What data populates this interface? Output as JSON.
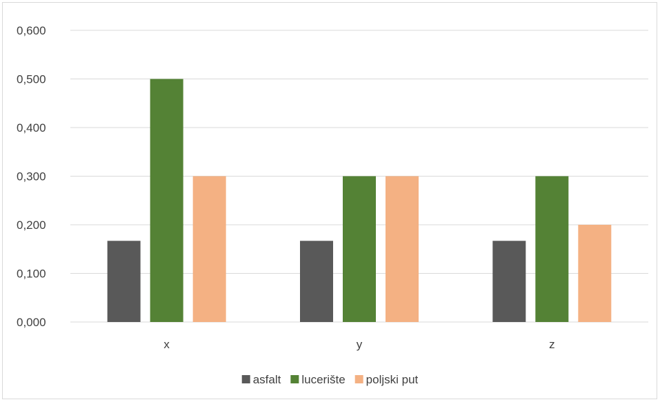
{
  "chart_data": {
    "type": "bar",
    "title": "",
    "xlabel": "",
    "ylabel": "",
    "categories": [
      "x",
      "y",
      "z"
    ],
    "series": [
      {
        "name": "asfalt",
        "color": "#595959",
        "values": [
          0.167,
          0.167,
          0.167
        ]
      },
      {
        "name": "lucerište",
        "color": "#548235",
        "values": [
          0.5,
          0.3,
          0.3
        ]
      },
      {
        "name": "poljski put",
        "color": "#f4b183",
        "values": [
          0.3,
          0.3,
          0.2
        ]
      }
    ],
    "ylim": [
      0,
      0.6
    ],
    "yticks": [
      "0,000",
      "0,100",
      "0,200",
      "0,300",
      "0,400",
      "0,500",
      "0,600"
    ],
    "grid": true,
    "legend_position": "bottom",
    "gridline_color": "#d9d9d9"
  }
}
